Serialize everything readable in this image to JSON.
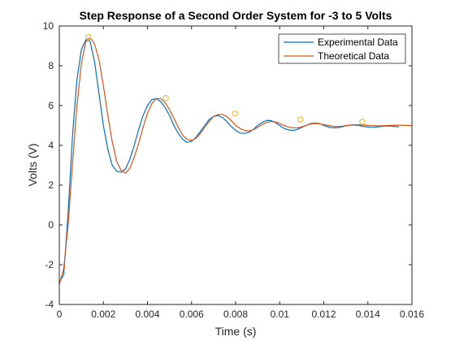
{
  "chart_data": {
    "type": "line",
    "title": "Step Response of a Second Order System for -3 to 5 Volts",
    "xlabel": "Time (s)",
    "ylabel": "Volts (V)",
    "xlim": [
      0,
      0.016
    ],
    "ylim": [
      -4,
      10
    ],
    "x_ticks": [
      0,
      0.002,
      0.004,
      0.006,
      0.008,
      0.01,
      0.012,
      0.014,
      0.016
    ],
    "x_tick_labels": [
      "0",
      "0.002",
      "0.004",
      "0.006",
      "0.008",
      "0.01",
      "0.012",
      "0.014",
      "0.016"
    ],
    "y_ticks": [
      -4,
      -2,
      0,
      2,
      4,
      6,
      8,
      10
    ],
    "y_tick_labels": [
      "-4",
      "-2",
      "0",
      "2",
      "4",
      "6",
      "8",
      "10"
    ],
    "grid": false,
    "legend_position": "top-right",
    "series": [
      {
        "name": "Experimental Data",
        "color": "#0072BD",
        "x": [
          0,
          0.0002,
          0.0004,
          0.0006,
          0.0008,
          0.001,
          0.0012,
          0.0013,
          0.0014,
          0.0016,
          0.0018,
          0.002,
          0.0022,
          0.0024,
          0.0026,
          0.0028,
          0.003,
          0.0032,
          0.0034,
          0.0036,
          0.0038,
          0.004,
          0.0042,
          0.0044,
          0.0046,
          0.0048,
          0.005,
          0.0052,
          0.0054,
          0.0056,
          0.0058,
          0.006,
          0.0062,
          0.0064,
          0.0066,
          0.0068,
          0.007,
          0.0072,
          0.0074,
          0.0076,
          0.0078,
          0.008,
          0.0082,
          0.0084,
          0.0086,
          0.0088,
          0.009,
          0.0092,
          0.0094,
          0.0096,
          0.0098,
          0.01,
          0.0102,
          0.0104,
          0.0106,
          0.0108,
          0.011,
          0.0112,
          0.0114,
          0.0116,
          0.0118,
          0.012,
          0.0122,
          0.0124,
          0.0126,
          0.0128,
          0.013,
          0.0132,
          0.0134,
          0.0136,
          0.0138,
          0.014,
          0.0142,
          0.0144,
          0.0146,
          0.0148,
          0.015,
          0.0152,
          0.0154
        ],
        "y": [
          -2.9,
          -2.5,
          0.6,
          4.5,
          7.3,
          8.8,
          9.3,
          9.35,
          9.2,
          8.2,
          6.6,
          5.0,
          3.8,
          3.0,
          2.7,
          2.65,
          2.8,
          3.3,
          4.0,
          4.8,
          5.5,
          6.0,
          6.3,
          6.35,
          6.2,
          5.9,
          5.5,
          5.0,
          4.6,
          4.3,
          4.15,
          4.2,
          4.4,
          4.7,
          5.0,
          5.3,
          5.45,
          5.5,
          5.4,
          5.2,
          4.95,
          4.75,
          4.62,
          4.6,
          4.65,
          4.8,
          5.0,
          5.15,
          5.25,
          5.25,
          5.15,
          5.0,
          4.85,
          4.78,
          4.75,
          4.8,
          4.9,
          5.0,
          5.1,
          5.12,
          5.1,
          5.0,
          4.92,
          4.88,
          4.88,
          4.92,
          4.98,
          5.02,
          5.02,
          5.0,
          4.95,
          4.92,
          4.9,
          4.92,
          4.95,
          4.97,
          4.97,
          4.95,
          4.93
        ]
      },
      {
        "name": "Theoretical Data",
        "color": "#D95319",
        "x": [
          0,
          0.0002,
          0.0004,
          0.0006,
          0.0008,
          0.001,
          0.0012,
          0.0014,
          0.0016,
          0.0018,
          0.002,
          0.0022,
          0.0024,
          0.0026,
          0.0028,
          0.003,
          0.0032,
          0.0034,
          0.0036,
          0.0038,
          0.004,
          0.0042,
          0.0044,
          0.0046,
          0.0048,
          0.005,
          0.0052,
          0.0054,
          0.0056,
          0.0058,
          0.006,
          0.0062,
          0.0064,
          0.0066,
          0.0068,
          0.007,
          0.0072,
          0.0074,
          0.0076,
          0.0078,
          0.008,
          0.0082,
          0.0084,
          0.0086,
          0.0088,
          0.009,
          0.0092,
          0.0094,
          0.0096,
          0.0098,
          0.01,
          0.0102,
          0.0104,
          0.0106,
          0.0108,
          0.011,
          0.0112,
          0.0114,
          0.0116,
          0.0118,
          0.012,
          0.0122,
          0.0124,
          0.0126,
          0.0128,
          0.013,
          0.0132,
          0.0134,
          0.0136,
          0.0138,
          0.014,
          0.0142,
          0.0144,
          0.0146,
          0.0148,
          0.015,
          0.0152,
          0.0154,
          0.0156,
          0.0158,
          0.016
        ],
        "y": [
          -3.0,
          -2.2,
          0.0,
          3.1,
          6.0,
          8.1,
          9.2,
          9.4,
          9.1,
          8.3,
          7.0,
          5.5,
          4.2,
          3.2,
          2.75,
          2.6,
          2.85,
          3.4,
          4.1,
          4.9,
          5.6,
          6.1,
          6.35,
          6.35,
          6.15,
          5.8,
          5.35,
          4.9,
          4.5,
          4.3,
          4.25,
          4.35,
          4.6,
          4.9,
          5.2,
          5.45,
          5.55,
          5.55,
          5.45,
          5.25,
          5.0,
          4.85,
          4.75,
          4.72,
          4.78,
          4.9,
          5.05,
          5.15,
          5.2,
          5.18,
          5.1,
          5.0,
          4.92,
          4.88,
          4.88,
          4.93,
          5.0,
          5.07,
          5.1,
          5.08,
          5.04,
          5.0,
          4.96,
          4.95,
          4.96,
          4.99,
          5.02,
          5.04,
          5.03,
          5.02,
          5.0,
          4.99,
          4.98,
          4.98,
          4.99,
          5.0,
          5.01,
          5.01,
          5.01,
          5.0,
          5.0
        ]
      }
    ],
    "peak_markers": {
      "color": "#EDB120",
      "x": [
        0.00132,
        0.00483,
        0.00797,
        0.01094,
        0.01375
      ],
      "y": [
        9.45,
        6.38,
        5.6,
        5.3,
        5.18
      ]
    }
  }
}
